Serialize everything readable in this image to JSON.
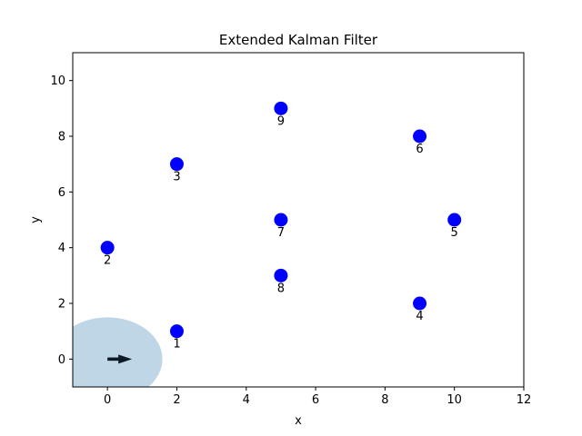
{
  "chart_data": {
    "type": "scatter",
    "title": "Extended Kalman Filter",
    "xlabel": "x",
    "ylabel": "y",
    "xlim": [
      -1,
      12
    ],
    "ylim": [
      -1,
      11
    ],
    "xticks": [
      0,
      2,
      4,
      6,
      8,
      10,
      12
    ],
    "yticks": [
      0,
      2,
      4,
      6,
      8,
      10
    ],
    "grid": false,
    "landmarks": {
      "color": "#0000ff",
      "points": [
        {
          "label": "1",
          "x": 2,
          "y": 1
        },
        {
          "label": "2",
          "x": 0,
          "y": 4
        },
        {
          "label": "3",
          "x": 2,
          "y": 7
        },
        {
          "label": "4",
          "x": 9,
          "y": 2
        },
        {
          "label": "5",
          "x": 10,
          "y": 5
        },
        {
          "label": "6",
          "x": 9,
          "y": 8
        },
        {
          "label": "7",
          "x": 5,
          "y": 5
        },
        {
          "label": "8",
          "x": 5,
          "y": 3
        },
        {
          "label": "9",
          "x": 5,
          "y": 9
        }
      ]
    },
    "robot": {
      "x": 0,
      "y": 0,
      "heading_deg": 0,
      "color": "#0b1a26",
      "covariance_ellipse": {
        "center": [
          0,
          0
        ],
        "semi_axes": [
          1.6,
          1.5
        ],
        "color": "#a9c8de"
      }
    }
  }
}
